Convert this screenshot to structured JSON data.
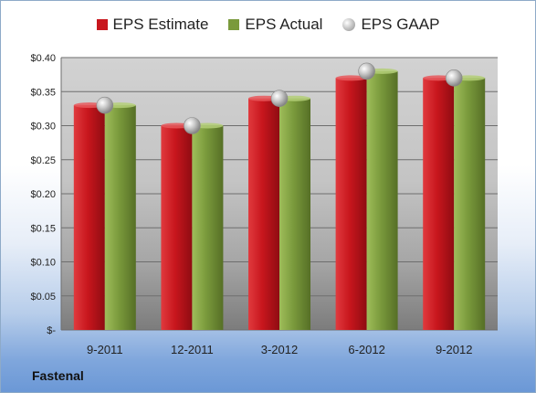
{
  "chart_data": {
    "type": "bar",
    "categories": [
      "9-2011",
      "12-2011",
      "3-2012",
      "6-2012",
      "9-2012"
    ],
    "series": [
      {
        "name": "EPS Estimate",
        "values": [
          0.33,
          0.3,
          0.34,
          0.37,
          0.37
        ],
        "color": "#c8161d",
        "kind": "bar"
      },
      {
        "name": "EPS Actual",
        "values": [
          0.33,
          0.3,
          0.34,
          0.38,
          0.37
        ],
        "color": "#7a9a3c",
        "kind": "bar"
      },
      {
        "name": "EPS GAAP",
        "values": [
          0.33,
          0.3,
          0.34,
          0.38,
          0.37
        ],
        "color": "#b0b0b0",
        "kind": "marker"
      }
    ],
    "yticks": [
      "$-",
      "$0.05",
      "$0.10",
      "$0.15",
      "$0.20",
      "$0.25",
      "$0.30",
      "$0.35",
      "$0.40"
    ],
    "ylim": [
      0,
      0.4
    ],
    "grid": true,
    "legend": "top"
  },
  "footer": {
    "company": "Fastenal"
  }
}
